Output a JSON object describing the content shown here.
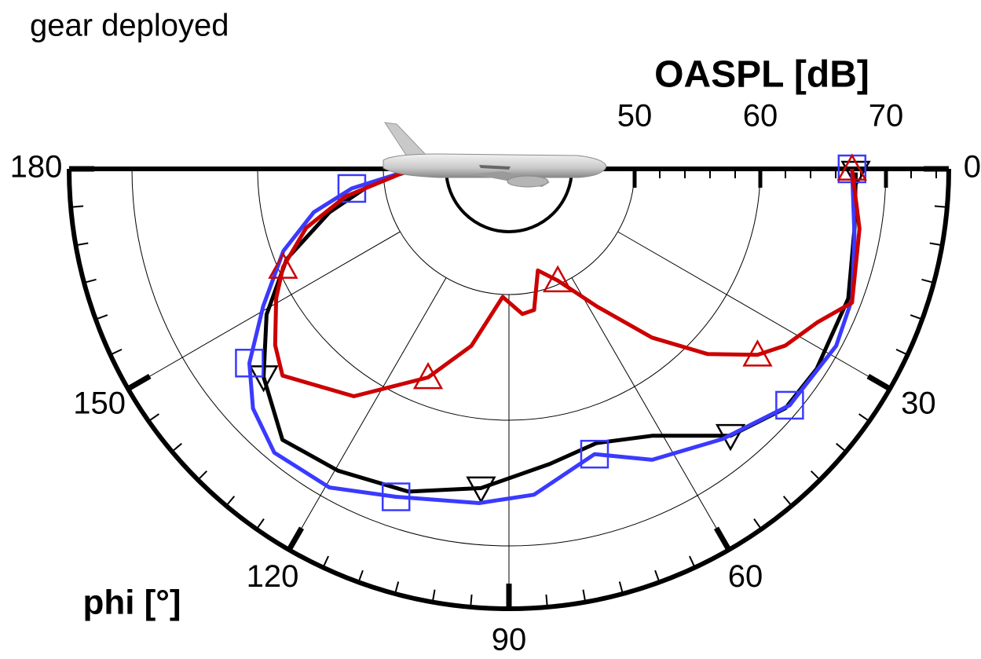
{
  "chart_data": {
    "type": "polar",
    "title": "gear deployed",
    "r_label": "OASPL [dB]",
    "theta_label": "phi [°]",
    "rlim": [
      40,
      75
    ],
    "rticks": [
      50,
      60,
      70
    ],
    "thetalim": [
      0,
      180
    ],
    "thetaticks": [
      0,
      30,
      60,
      90,
      120,
      150,
      180
    ],
    "grid": true,
    "series": [
      {
        "color": "#000000",
        "marker": "triangle-down",
        "x": [
          0.6,
          9.7,
          20.9,
          33,
          40.9,
          50.3,
          61.8,
          72.3,
          82.1,
          95,
          107.3,
          119.5,
          129.9,
          139.7,
          149,
          157.9,
          166.4,
          174.9,
          179
        ],
        "values": [
          67.6,
          67.9,
          68.9,
          69.2,
          69.1,
          67.6,
          64.1,
          62.9,
          63.7,
          65.5,
          66.9,
          67.6,
          68.1,
          65.6,
          62.5,
          59.1,
          54.7,
          50.6,
          47.7
        ]
      },
      {
        "color": "#3a3aff",
        "marker": "square",
        "x": [
          0,
          10.9,
          20.7,
          28.4,
          40.1,
          51.7,
          63.8,
          73.3,
          85.6,
          95.1,
          109,
          119.4,
          129.6,
          136.9,
          143.2,
          150.8,
          160,
          167.5,
          172.9,
          179
        ],
        "values": [
          67.3,
          68,
          69.2,
          69.6,
          69.2,
          67.4,
          65.8,
          63.7,
          66,
          66.7,
          67.6,
          69.1,
          69.3,
          67.9,
          65.8,
          62.4,
          59.1,
          55.9,
          52.6,
          48
        ]
      },
      {
        "color": "#cc0000",
        "marker": "triangle-up",
        "x": [
          0,
          9.7,
          21.3,
          26.5,
          32.6,
          36.8,
          43,
          49.7,
          57.4,
          66.4,
          74.1,
          79.9,
          84.7,
          92.8,
          102,
          111.2,
          124.3,
          137.6,
          143,
          150.9,
          156.5,
          163.8,
          170.4,
          179
        ],
        "values": [
          67.3,
          68.3,
          69.3,
          67.4,
          66.1,
          64.7,
          61.6,
          57.6,
          53,
          49.7,
          48.4,
          51.4,
          51.6,
          50.2,
          54.4,
          57.8,
          61.9,
          64.4,
          63.3,
          61.2,
          59.6,
          56.8,
          53.2,
          48
        ]
      }
    ]
  }
}
